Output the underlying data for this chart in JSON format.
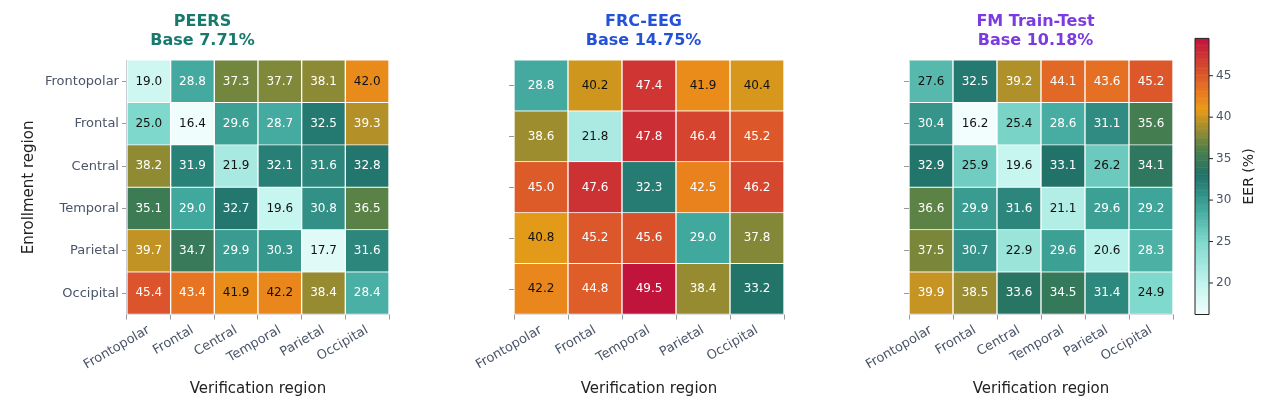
{
  "chart_data": [
    {
      "type": "heatmap",
      "title": "PEERS",
      "subtitle": "Base 7.71%",
      "xlabel": "Verification region",
      "ylabel": "Enrollment region",
      "categories": [
        "Frontopolar",
        "Frontal",
        "Central",
        "Temporal",
        "Parietal",
        "Occipital"
      ],
      "y_categories": [
        "Frontopolar",
        "Frontal",
        "Central",
        "Temporal",
        "Parietal",
        "Occipital"
      ],
      "data_labels": true,
      "cells": [
        [
          19.0,
          28.8,
          37.3,
          37.7,
          38.1,
          42.0
        ],
        [
          25.0,
          16.4,
          29.6,
          28.7,
          32.5,
          39.3
        ],
        [
          38.2,
          31.9,
          21.9,
          32.1,
          31.6,
          32.8
        ],
        [
          35.1,
          29.0,
          32.7,
          19.6,
          30.8,
          36.5
        ],
        [
          39.7,
          34.7,
          29.9,
          30.3,
          17.7,
          31.6
        ],
        [
          45.4,
          43.4,
          41.9,
          42.2,
          38.4,
          28.4
        ]
      ],
      "cell_labels": [
        [
          "19.0",
          "28.8",
          "37.3",
          "37.7",
          "38.1",
          "42.0"
        ],
        [
          "25.0",
          "16.4",
          "29.6",
          "28.7",
          "32.5",
          "39.3"
        ],
        [
          "38.2",
          "31.9",
          "21.9",
          "32.1",
          "31.6",
          "32.8"
        ],
        [
          "35.1",
          "29.0",
          "32.7",
          "19.6",
          "30.8",
          "36.5"
        ],
        [
          "39.7",
          "34.7",
          "29.9",
          "30.3",
          "17.7",
          "31.6"
        ],
        [
          "45.4",
          "43.4",
          "41.9",
          "42.2",
          "38.4",
          "28.4"
        ]
      ]
    },
    {
      "type": "heatmap",
      "title": "FRC-EEG",
      "subtitle": "Base 14.75%",
      "xlabel": "Verification region",
      "categories": [
        "Frontopolar",
        "Frontal",
        "Temporal",
        "Parietal",
        "Occipital"
      ],
      "y_categories": [
        null,
        null,
        null,
        null,
        null
      ],
      "tick_labels": "x",
      "data_labels": true,
      "cells": [
        [
          28.8,
          40.2,
          47.4,
          41.9,
          40.4
        ],
        [
          38.6,
          21.8,
          47.8,
          46.4,
          45.2
        ],
        [
          45.0,
          47.6,
          32.3,
          42.5,
          46.2
        ],
        [
          40.8,
          45.2,
          45.6,
          29.0,
          37.8
        ],
        [
          42.2,
          44.8,
          49.5,
          38.4,
          33.2
        ]
      ],
      "cell_labels": [
        [
          "28.8",
          "40.2",
          "47.4",
          "41.9",
          "40.4"
        ],
        [
          "38.6",
          "21.8",
          "47.8",
          "46.4",
          "45.2"
        ],
        [
          "45.0",
          "47.6",
          "32.3",
          "42.5",
          "46.2"
        ],
        [
          "40.8",
          "45.2",
          "45.6",
          "29.0",
          "37.8"
        ],
        [
          "42.2",
          "44.8",
          "49.5",
          "38.4",
          "33.2"
        ]
      ]
    },
    {
      "type": "heatmap",
      "title": "FM Train-Test",
      "subtitle": "Base 10.18%",
      "xlabel": "Verification region",
      "clabel": "EER (%)",
      "clim": [
        16.2,
        49.5
      ],
      "cticks": [
        20,
        25,
        30,
        35,
        40,
        45
      ],
      "categories": [
        "Frontopolar",
        "Frontal",
        "Central",
        "Temporal",
        "Parietal",
        "Occipital"
      ],
      "y_categories": [
        null,
        null,
        null,
        null,
        null,
        null
      ],
      "tick_labels": "x",
      "data_labels": true,
      "cells": [
        [
          27.6,
          32.5,
          39.2,
          44.1,
          43.6,
          45.2
        ],
        [
          30.4,
          16.2,
          25.4,
          28.6,
          31.1,
          35.6
        ],
        [
          32.9,
          25.9,
          19.6,
          33.1,
          26.2,
          34.1
        ],
        [
          36.6,
          29.9,
          31.6,
          21.1,
          29.6,
          29.2
        ],
        [
          37.5,
          30.7,
          22.9,
          29.6,
          20.6,
          28.3
        ],
        [
          39.9,
          38.5,
          33.6,
          34.5,
          31.4,
          24.9
        ]
      ],
      "cell_labels": [
        [
          "27.6",
          "32.5",
          "39.2",
          "44.1",
          "43.6",
          "45.2"
        ],
        [
          "30.4",
          "16.2",
          "25.4",
          "28.6",
          "31.1",
          "35.6"
        ],
        [
          "32.9",
          "25.9",
          "19.6",
          "33.1",
          "26.2",
          "34.1"
        ],
        [
          "36.6",
          "29.9",
          "31.6",
          "21.1",
          "29.6",
          "29.2"
        ],
        [
          "37.5",
          "30.7",
          "22.9",
          "29.6",
          "20.6",
          "28.3"
        ],
        [
          "39.9",
          "38.5",
          "33.6",
          "34.5",
          "31.4",
          "24.9"
        ]
      ]
    }
  ]
}
